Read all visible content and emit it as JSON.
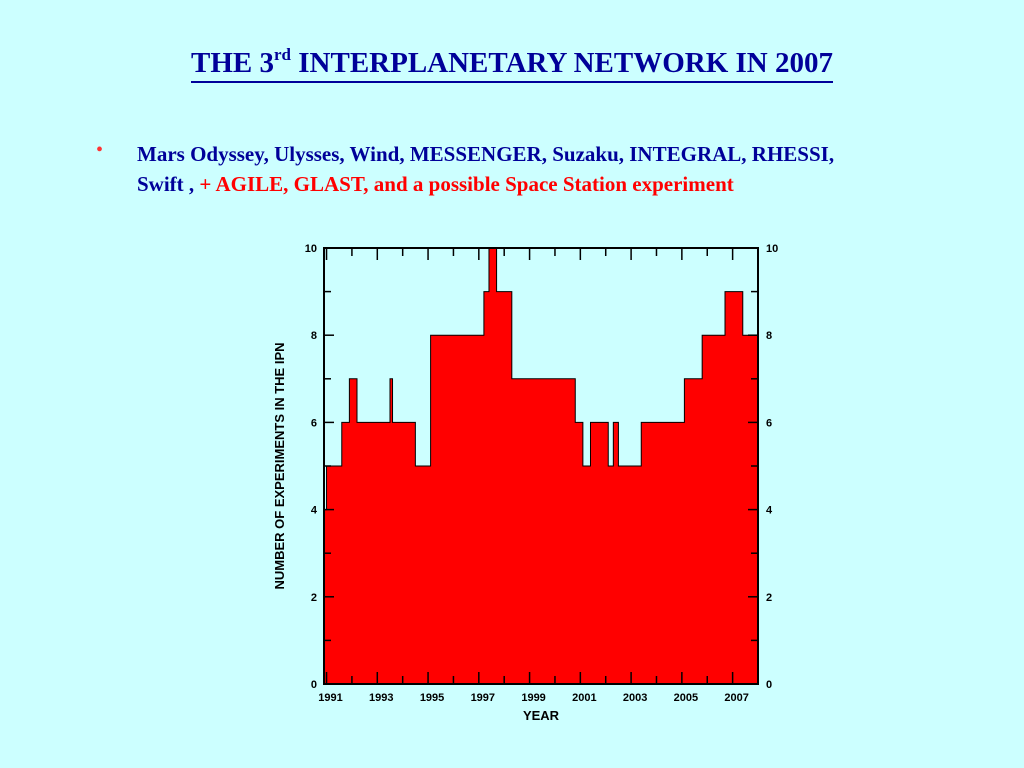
{
  "slide": {
    "title_pre": "THE 3",
    "title_sup": "rd",
    "title_post": " INTERPLANETARY NETWORK IN 2007",
    "bullet_marker": "•",
    "bullet_line1": "Mars Odyssey, Ulysses, Wind, MESSENGER, Suzaku, INTEGRAL, RHESSI,",
    "bullet_line2_blue": "Swift , ",
    "bullet_line2_red": "+ AGILE, GLAST, and a possible Space Station experiment",
    "colors": {
      "background": "#ccffff",
      "title": "#000099",
      "highlight": "#ff0000"
    }
  },
  "chart_data": {
    "type": "area",
    "title": "",
    "xlabel": "YEAR",
    "ylabel": "NUMBER OF EXPERIMENTS IN THE IPN",
    "xlim": [
      1990.9,
      2008.0
    ],
    "ylim": [
      0,
      10
    ],
    "x_ticks": [
      "1991",
      "1993",
      "1995",
      "1997",
      "1999",
      "2001",
      "2003",
      "2005",
      "2007"
    ],
    "y_ticks_left": [
      "0",
      "2",
      "4",
      "6",
      "8",
      "10"
    ],
    "y_ticks_right": [
      "0",
      "2",
      "4",
      "6",
      "8",
      "10"
    ],
    "step": true,
    "fill_color": "#ff0000",
    "grid": false,
    "x": [
      1990.9,
      1991.0,
      1991.6,
      1991.9,
      1992.2,
      1993.5,
      1993.6,
      1993.9,
      1994.5,
      1995.1,
      1995.6,
      1997.2,
      1997.4,
      1997.7,
      1998.3,
      2000.8,
      2001.1,
      2001.4,
      2002.1,
      2002.3,
      2002.5,
      2003.4,
      2005.1,
      2005.8,
      2006.7,
      2007.4,
      2008.0
    ],
    "values": [
      4,
      5,
      6,
      7,
      6,
      7,
      6,
      6,
      5,
      8,
      8,
      9,
      10,
      9,
      7,
      6,
      5,
      6,
      5,
      6,
      5,
      6,
      7,
      8,
      9,
      8,
      9
    ]
  }
}
